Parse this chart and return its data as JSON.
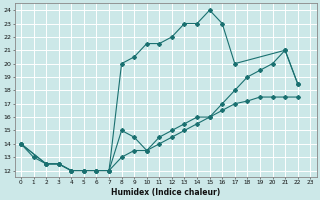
{
  "xlabel": "Humidex (Indice chaleur)",
  "bg_color": "#cce8e8",
  "grid_color": "#ffffff",
  "line_color": "#1a7070",
  "xlim": [
    -0.5,
    23.5
  ],
  "ylim": [
    11.5,
    24.5
  ],
  "xticks": [
    0,
    1,
    2,
    3,
    4,
    5,
    6,
    7,
    8,
    9,
    10,
    11,
    12,
    13,
    14,
    15,
    16,
    17,
    18,
    19,
    20,
    21,
    22,
    23
  ],
  "yticks": [
    12,
    13,
    14,
    15,
    16,
    17,
    18,
    19,
    20,
    21,
    22,
    23,
    24
  ],
  "line1_x": [
    0,
    1,
    2,
    3,
    4,
    5,
    6,
    7,
    8,
    9,
    10,
    11,
    12,
    13,
    14,
    15,
    16,
    17,
    21,
    22
  ],
  "line1_y": [
    14,
    13,
    12.5,
    12.5,
    12,
    12,
    12,
    12,
    20,
    20.5,
    21.5,
    21.5,
    22,
    23,
    23,
    24,
    23,
    20,
    21,
    18.5
  ],
  "line2_x": [
    0,
    2,
    3,
    4,
    5,
    6,
    7,
    8,
    9,
    10,
    11,
    12,
    13,
    14,
    15,
    16,
    17,
    18,
    19,
    20,
    21,
    22
  ],
  "line2_y": [
    14,
    12.5,
    12.5,
    12,
    12,
    12,
    12,
    15,
    14.5,
    13.5,
    14.5,
    15,
    15.5,
    16,
    16,
    17,
    18,
    19,
    19.5,
    20,
    21,
    18.5
  ],
  "line3_x": [
    0,
    2,
    3,
    4,
    5,
    6,
    7,
    8,
    9,
    10,
    11,
    12,
    13,
    14,
    15,
    16,
    17,
    18,
    19,
    20,
    21,
    22
  ],
  "line3_y": [
    14,
    12.5,
    12.5,
    12,
    12,
    12,
    12,
    13,
    13.5,
    13.5,
    14,
    14.5,
    15,
    15.5,
    16,
    16.5,
    17,
    17.2,
    17.5,
    17.5,
    17.5,
    17.5
  ]
}
